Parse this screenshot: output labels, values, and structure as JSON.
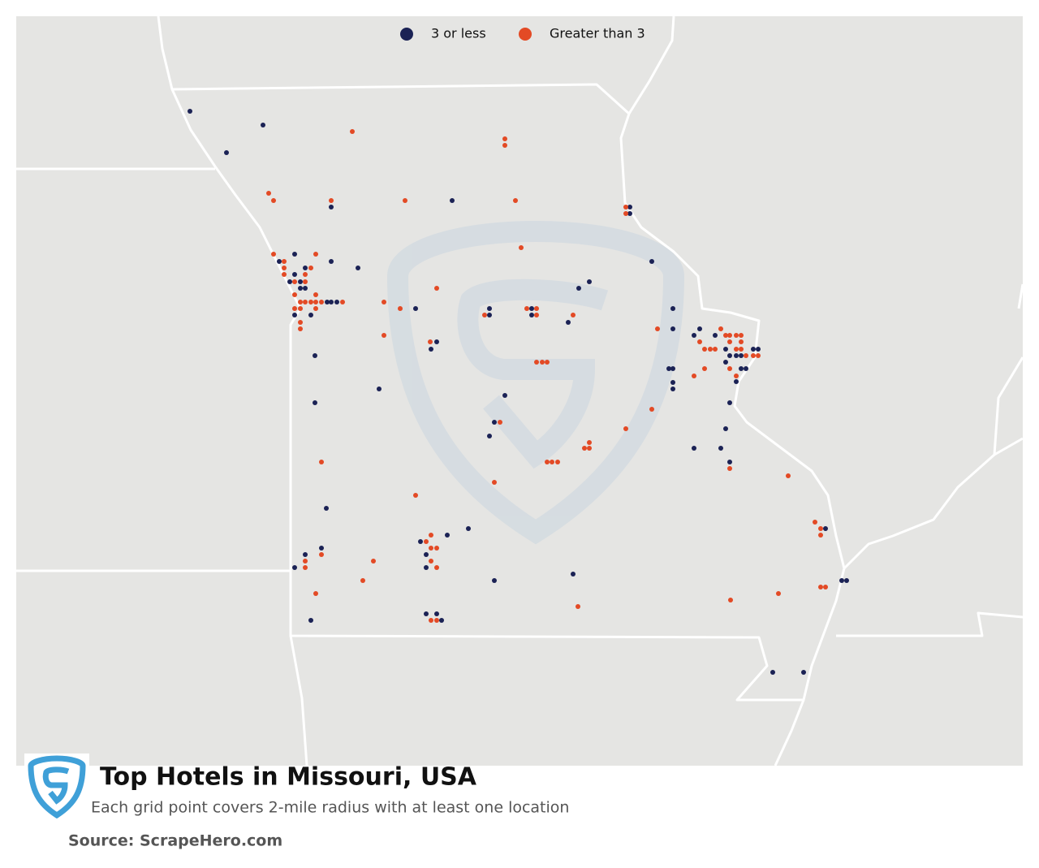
{
  "legend": [
    {
      "label": "3 or less",
      "color": "#1b2255"
    },
    {
      "label": "Greater than 3",
      "color": "#e34a25"
    }
  ],
  "title": "Top Hotels in Missouri, USA",
  "subtitle": "Each grid point covers 2-mile radius with at least one location",
  "source": "Source: ScrapeHero.com"
}
